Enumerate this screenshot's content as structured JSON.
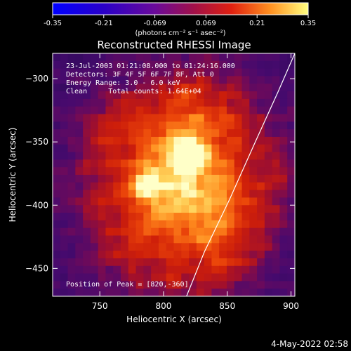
{
  "chart_data": {
    "type": "heatmap",
    "title": "Reconstructed RHESSI Image",
    "xlabel": "Heliocentric X (arcsec)",
    "ylabel": "Heliocentric Y (arcsec)",
    "xlim": [
      713,
      903
    ],
    "ylim": [
      -472,
      -280
    ],
    "x_ticks": [
      750,
      800,
      850,
      900
    ],
    "y_ticks": [
      -300,
      -350,
      -400,
      -450
    ],
    "colorbar": {
      "label": "(photons cm⁻² s⁻¹ asec⁻²)",
      "range": [
        -0.35,
        0.35
      ],
      "ticks": [
        "-0.35",
        "-0.21",
        "-0.069",
        "0.069",
        "0.21",
        "0.35"
      ]
    },
    "annotations": [
      "23-Jul-2003 01:21:08.000 to 01:24:16.000",
      "Detectors: 3F 4F 5F 6F 7F 8F, Att 0",
      "Energy Range: 3.0 - 6.0 keV",
      "Clean     Total counts: 1.64E+04"
    ],
    "peak_label": "Position of Peak = [820,-360]",
    "peaks": [
      {
        "x": 820,
        "y": -360,
        "value": 0.35
      },
      {
        "x": 785,
        "y": -385,
        "value": 0.3
      }
    ],
    "limb_curve": [
      [
        903,
        -280
      ],
      [
        890,
        -310
      ],
      [
        872,
        -350
      ],
      [
        852,
        -395
      ],
      [
        832,
        -437
      ],
      [
        818,
        -472
      ]
    ]
  },
  "footer": {
    "timestamp": "4-May-2022 02:58"
  }
}
